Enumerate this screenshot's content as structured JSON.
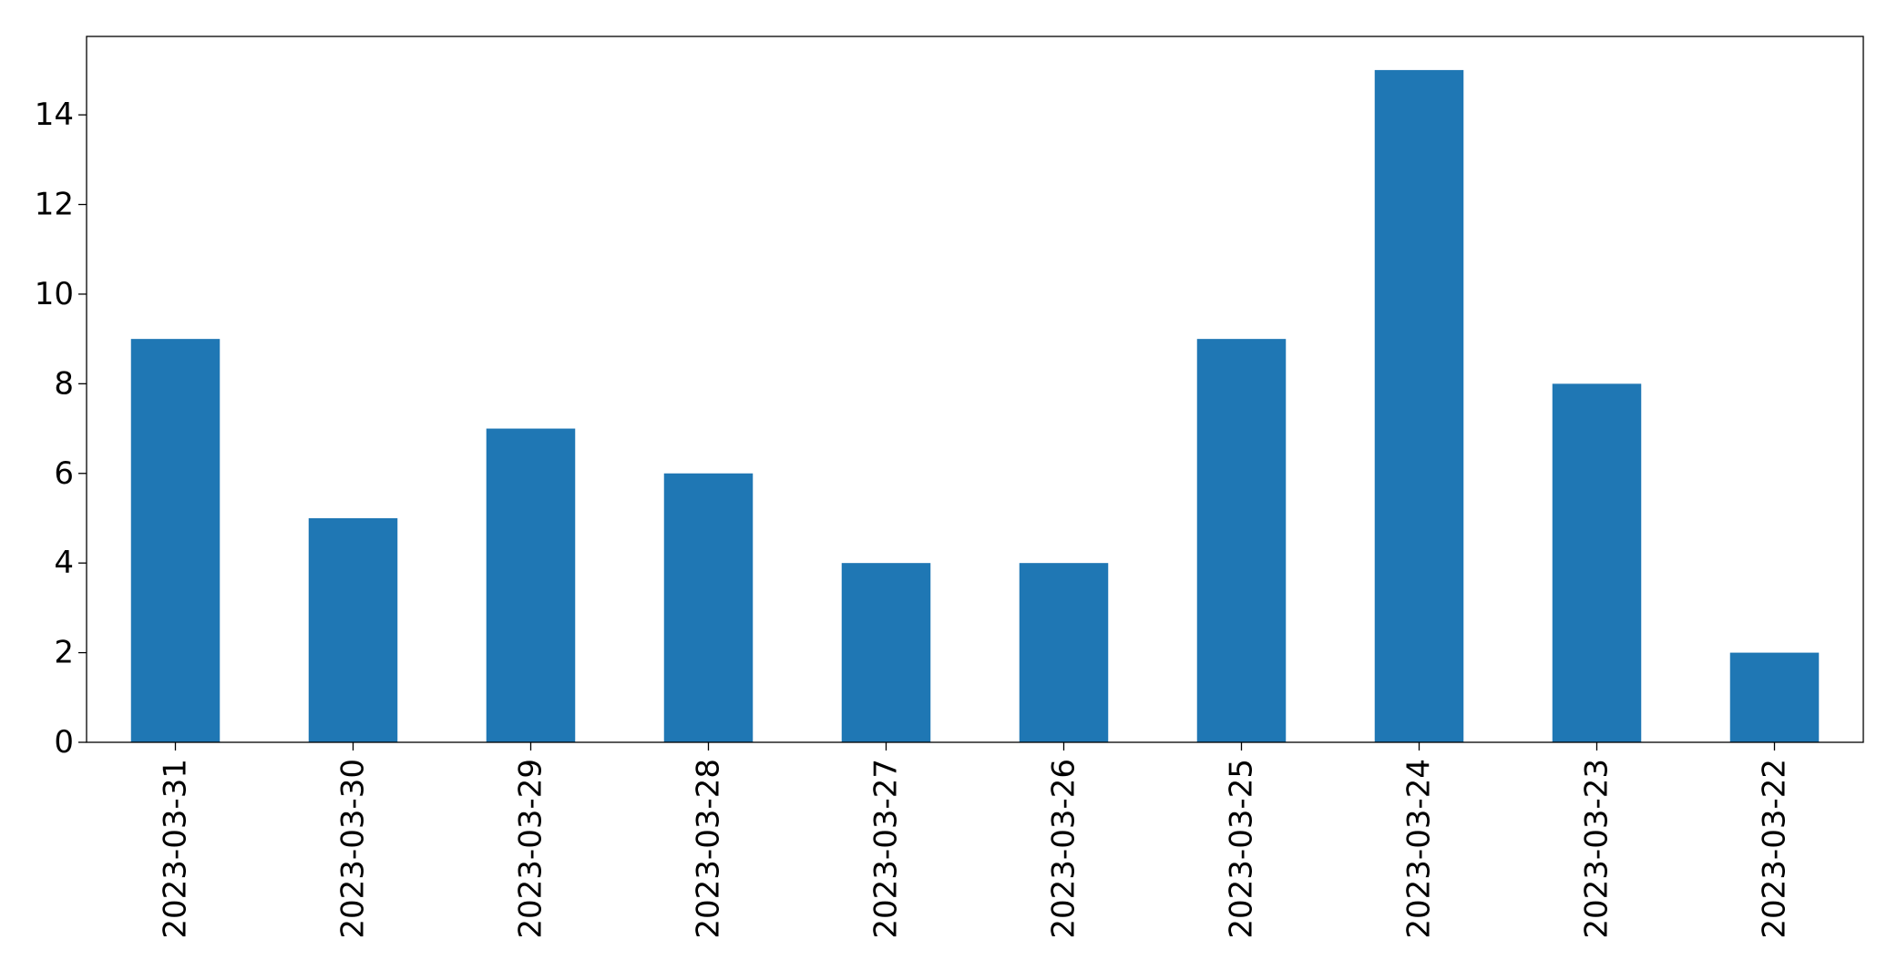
{
  "chart_data": {
    "type": "bar",
    "categories": [
      "2023-03-31",
      "2023-03-30",
      "2023-03-29",
      "2023-03-28",
      "2023-03-27",
      "2023-03-26",
      "2023-03-25",
      "2023-03-24",
      "2023-03-23",
      "2023-03-22"
    ],
    "values": [
      9,
      5,
      7,
      6,
      4,
      4,
      9,
      15,
      8,
      2
    ],
    "title": "",
    "xlabel": "",
    "ylabel": "",
    "ylim": [
      0,
      15.75
    ],
    "yticks": [
      0,
      2,
      4,
      6,
      8,
      10,
      12,
      14
    ],
    "grid": false,
    "legend": "none",
    "bar_color": "#1f77b4"
  }
}
